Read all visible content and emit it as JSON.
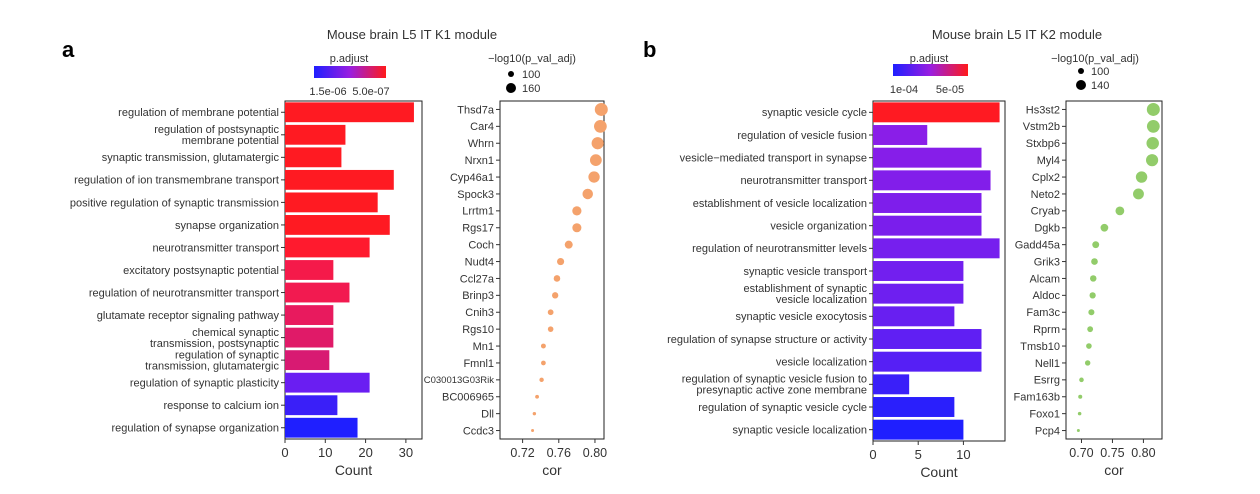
{
  "figure": {
    "panel_a_letter": "a",
    "panel_b_letter": "b"
  },
  "chart_data": [
    {
      "id": "a_bar",
      "type": "bar",
      "orientation": "horizontal",
      "title": "Mouse brain L5 IT K1 module",
      "xlabel": "Count",
      "ylabel": "",
      "xlim": [
        0,
        34
      ],
      "xticks": [
        0,
        10,
        20,
        30
      ],
      "color_legend": {
        "title": "p.adjust",
        "labels": [
          "1.5e-06",
          "5.0e-07"
        ],
        "low": "#1f1fff",
        "high": "#ff1a1a"
      },
      "categories": [
        "regulation of membrane potential",
        "regulation of postsynaptic\nmembrane potential",
        "synaptic transmission, glutamatergic",
        "regulation of ion transmembrane transport",
        "positive regulation of synaptic transmission",
        "synapse organization",
        "neurotransmitter transport",
        "excitatory postsynaptic potential",
        "regulation of neurotransmitter transport",
        "glutamate receptor signaling pathway",
        "chemical synaptic\ntransmission, postsynaptic",
        "regulation of synaptic\ntransmission, glutamatergic",
        "regulation of synaptic plasticity",
        "response to calcium ion",
        "regulation of synapse organization"
      ],
      "values": [
        32,
        15,
        14,
        27,
        23,
        26,
        21,
        12,
        16,
        12,
        12,
        11,
        21,
        13,
        18
      ],
      "colors": [
        "#ff1a22",
        "#ff1a22",
        "#ff1a22",
        "#ff1a22",
        "#ff1a22",
        "#ff1a22",
        "#ff1a2e",
        "#f51a4a",
        "#f21a50",
        "#e81a5e",
        "#e01a68",
        "#d81a72",
        "#6a1ef2",
        "#3a1ff8",
        "#1f1fff"
      ]
    },
    {
      "id": "a_dot",
      "type": "scatter",
      "xlabel": "cor",
      "xlim": [
        0.695,
        0.81
      ],
      "xticks": [
        0.72,
        0.76,
        0.8
      ],
      "xtick_labels": [
        "0.72",
        "0.76",
        "0.80"
      ],
      "size_legend": {
        "title": "−log10(p_val_adj)",
        "labels": [
          "100",
          "160"
        ]
      },
      "color": "#f4a26c",
      "genes": [
        "Thsd7a",
        "Car4",
        "Whrn",
        "Nrxn1",
        "Cyp46a1",
        "Spock3",
        "Lrrtm1",
        "Rgs17",
        "Coch",
        "Nudt4",
        "Ccl27a",
        "Brinp3",
        "Cnih3",
        "Rgs10",
        "Mn1",
        "Fmnl1",
        "C030013G03Rik",
        "BC006965",
        "Dll",
        "Ccdc3"
      ],
      "x": [
        0.807,
        0.806,
        0.803,
        0.801,
        0.799,
        0.792,
        0.78,
        0.78,
        0.771,
        0.762,
        0.758,
        0.756,
        0.751,
        0.751,
        0.743,
        0.743,
        0.741,
        0.736,
        0.733,
        0.731
      ],
      "neglog10": [
        175,
        172,
        165,
        160,
        155,
        145,
        130,
        128,
        115,
        105,
        98,
        95,
        88,
        86,
        78,
        76,
        72,
        65,
        60,
        55
      ]
    },
    {
      "id": "b_bar",
      "type": "bar",
      "orientation": "horizontal",
      "title": "Mouse brain L5 IT K2 module",
      "xlabel": "Count",
      "ylabel": "",
      "xlim": [
        0,
        14.6
      ],
      "xticks": [
        0,
        5,
        10
      ],
      "color_legend": {
        "title": "p.adjust",
        "labels": [
          "1e-04",
          "5e-05"
        ],
        "low": "#1f1fff",
        "high": "#ff1a1a"
      },
      "categories": [
        "synaptic vesicle cycle",
        "regulation of vesicle fusion",
        "vesicle−mediated transport in synapse",
        "neurotransmitter transport",
        "establishment of vesicle localization",
        "vesicle organization",
        "regulation of neurotransmitter levels",
        "synaptic vesicle transport",
        "establishment of synaptic\nvesicle localization",
        "synaptic vesicle exocytosis",
        "regulation of synapse structure or activity",
        "vesicle localization",
        "regulation of synaptic vesicle fusion to\npresynaptic active zone membrane",
        "regulation of synaptic vesicle cycle",
        "synaptic vesicle localization"
      ],
      "values": [
        14,
        6,
        12,
        13,
        12,
        12,
        14,
        10,
        10,
        9,
        12,
        12,
        4,
        9,
        10
      ],
      "colors": [
        "#ff1a22",
        "#8a1ee8",
        "#861ee9",
        "#821eea",
        "#7e1eeb",
        "#7a1eec",
        "#761fee",
        "#721fef",
        "#6e1ff0",
        "#681ff1",
        "#601ff3",
        "#561ff5",
        "#3a1ff9",
        "#2a1ffc",
        "#1f1fff"
      ]
    },
    {
      "id": "b_dot",
      "type": "scatter",
      "xlabel": "cor",
      "xlim": [
        0.675,
        0.83
      ],
      "xticks": [
        0.7,
        0.75,
        0.8
      ],
      "xtick_labels": [
        "0.70",
        "0.75",
        "0.80"
      ],
      "size_legend": {
        "title": "−log10(p_val_adj)",
        "labels": [
          "100",
          "140"
        ]
      },
      "color": "#92cc6a",
      "genes": [
        "Hs3st2",
        "Vstm2b",
        "Stxbp6",
        "Myl4",
        "Cplx2",
        "Neto2",
        "Cryab",
        "Dgkb",
        "Gadd45a",
        "Grik3",
        "Alcam",
        "Aldoc",
        "Fam3c",
        "Rprm",
        "Tmsb10",
        "Nell1",
        "Esrrg",
        "Fam163b",
        "Foxo1",
        "Pcp4"
      ],
      "x": [
        0.816,
        0.816,
        0.815,
        0.814,
        0.797,
        0.792,
        0.762,
        0.737,
        0.723,
        0.721,
        0.719,
        0.718,
        0.716,
        0.714,
        0.712,
        0.71,
        0.7,
        0.698,
        0.697,
        0.695
      ],
      "neglog10": [
        150,
        148,
        145,
        142,
        135,
        130,
        110,
        100,
        92,
        90,
        88,
        86,
        84,
        82,
        80,
        78,
        70,
        65,
        60,
        55
      ]
    }
  ]
}
